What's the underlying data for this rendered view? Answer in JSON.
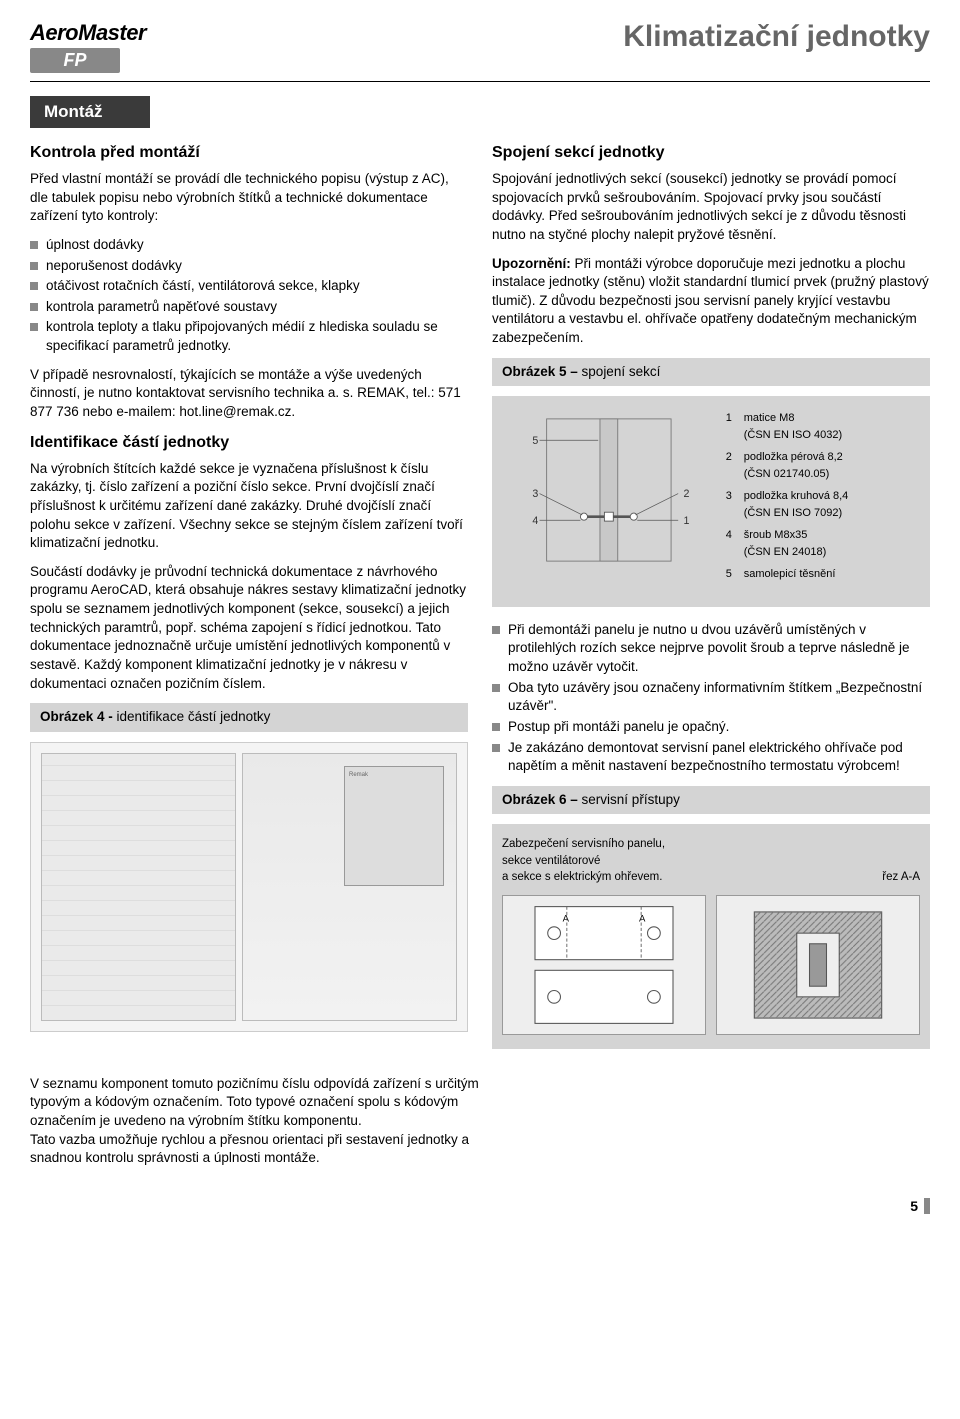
{
  "logo": {
    "top": "AeroMaster",
    "bottom": "FP"
  },
  "page_title": "Klimatizační jednotky",
  "section_bar": "Montáž",
  "left": {
    "h1": "Kontrola před montáží",
    "p1": "Před vlastní montáží se provádí dle technického popisu (výstup z AC), dle tabulek popisu nebo výrobních štítků a technické dokumentace zařízení tyto kontroly:",
    "bullets1": [
      "úplnost dodávky",
      "neporušenost dodávky",
      "otáčivost rotačních částí, ventilátorová sekce, klapky",
      "kontrola parametrů napěťové soustavy",
      "kontrola teploty a tlaku připojovaných médií z hlediska souladu se specifikací parametrů jednotky."
    ],
    "p2": "V případě nesrovnalostí, týkajících se montáže a výše uvedených činností, je nutno kontaktovat servisního technika a. s. REMAK, tel.: 571 877 736 nebo e-mailem: hot.line@remak.cz.",
    "h2": "Identifikace částí jednotky",
    "p3": "Na výrobních štítcích každé sekce je vyznačena příslušnost k číslu zakázky, tj. číslo zařízení a poziční číslo sekce. První dvojčíslí značí příslušnost k určitému zařízení dané zakázky. Druhé dvojčíslí značí polohu sekce v zařízení. Všechny sekce se stejným číslem zařízení tvoří klimatizační jednotku.",
    "p4": "Součástí dodávky je průvodní technická dokumentace z návrhového programu AeroCAD, která obsahuje nákres sestavy klimatizační jednotky spolu se seznamem jednotlivých komponent (sekce, sousekcí) a jejich technických paramtrů, popř. schéma zapojení s řídicí jednotkou. Tato dokumentace jednoznačně určuje umístění jednotlivých komponentů v sestavě. Každý komponent klimatizační jednotky je v nákresu v dokumentaci označen pozičním číslem.",
    "fig4_label": "Obrázek 4 - ",
    "fig4_title": "identifikace částí jednotky",
    "fig4_plate": "Remak"
  },
  "right": {
    "h1": "Spojení sekcí jednotky",
    "p1": "Spojování jednotlivých sekcí (sousekcí) jednotky se provádí pomocí spojovacích prvků sešroubováním. Spojovací prvky jsou součástí dodávky. Před sešroubováním jednotlivých sekcí je z důvodu těsnosti nutno na styčné plochy nalepit pryžové těsnění.",
    "p2a": "Upozornění:",
    "p2b": " Při montáži výrobce doporučuje mezi jednotku a plochu instalace jednotky (stěnu) vložit standardní tlumicí prvek (pružný plastový tlumič). Z důvodu bezpečnosti jsou servisní panely kryjící vestavbu ventilátoru a vestavbu el. ohřívače opatřeny dodatečným mechanickým zabezpečením.",
    "fig5_label": "Obrázek 5 – ",
    "fig5_title": "spojení sekcí",
    "fig5_legend": [
      {
        "n": "1",
        "t1": "matice M8",
        "t2": "(ČSN EN ISO 4032)"
      },
      {
        "n": "2",
        "t1": "podložka pérová 8,2",
        "t2": "(ČSN 021740.05)"
      },
      {
        "n": "3",
        "t1": "podložka kruhová 8,4",
        "t2": "(ČSN EN ISO 7092)"
      },
      {
        "n": "4",
        "t1": "šroub M8x35",
        "t2": "(ČSN EN 24018)"
      },
      {
        "n": "5",
        "t1": "samolepicí těsnění",
        "t2": ""
      }
    ],
    "bullets2": [
      "Při demontáži panelu je nutno u dvou uzávěrů umístěných v protilehlých rozích sekce nejprve povolit šroub a teprve následně je možno uzávěr vytočit.",
      "Oba tyto uzávěry jsou označeny informativním štítkem „Bezpečnostní uzávěr\".",
      "Postup při montáži panelu je opačný.",
      "Je zakázáno demontovat servisní panel elektrického ohřívače pod napětím a měnit nastavení  bezpečnostního termostatu výrobcem!"
    ],
    "fig6_label": "Obrázek 6 – ",
    "fig6_title": "servisní přístupy",
    "fig6_caption1": "Zabezpečení servisního panelu,",
    "fig6_caption2": "sekce ventilátorové",
    "fig6_caption3": "a sekce s elektrickým ohřevem.",
    "fig6_side": "řez A-A"
  },
  "bottom_para": "V seznamu komponent tomuto pozičnímu číslu odpovídá zařízení s určitým typovým  a kódovým označením. Toto typové označení spolu s kódovým označením je uvedeno na výrobním štítku komponentu.\nTato vazba umožňuje rychlou a přesnou orientaci při sestavení jednotky a snadnou kontrolu správnosti a úplnosti montáže.",
  "page_number": "5",
  "colors": {
    "title_gray": "#666666",
    "bar_dark": "#3a3a3a",
    "light_gray": "#d4d4d4",
    "square_gray": "#888888"
  }
}
